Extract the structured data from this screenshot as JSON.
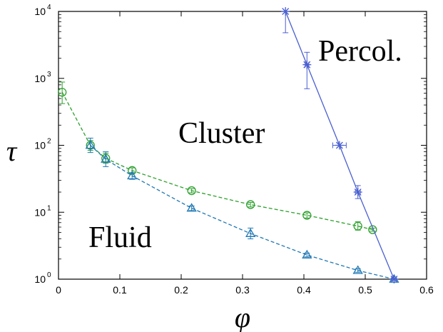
{
  "chart_data": {
    "type": "line",
    "xlabel": "φ",
    "ylabel": "τ",
    "xlim": [
      0,
      0.6
    ],
    "ylim": [
      1,
      10000
    ],
    "yscale": "log",
    "x_ticks": [
      "0",
      "0.1",
      "0.2",
      "0.3",
      "0.4",
      "0.5",
      "0.6"
    ],
    "y_ticks": [
      {
        "base": "10",
        "exp": "0"
      },
      {
        "base": "10",
        "exp": "1"
      },
      {
        "base": "10",
        "exp": "2"
      },
      {
        "base": "10",
        "exp": "3"
      },
      {
        "base": "10",
        "exp": "4"
      }
    ],
    "grid": false,
    "region_labels": [
      "Percol.",
      "Cluster",
      "Fluid"
    ],
    "series": [
      {
        "marker": "circle",
        "color": "#2ca02c",
        "line_style": "dashed",
        "points": [
          {
            "x": 0.006,
            "y": 620,
            "lo": 420,
            "hi": 880
          },
          {
            "x": 0.052,
            "y": 100,
            "lo": 84,
            "hi": 118
          },
          {
            "x": 0.077,
            "y": 64,
            "lo": 54,
            "hi": 76
          },
          {
            "x": 0.12,
            "y": 42,
            "lo": 38,
            "hi": 46
          },
          {
            "x": 0.217,
            "y": 21,
            "lo": 19.5,
            "hi": 22.5
          },
          {
            "x": 0.313,
            "y": 13,
            "lo": 12,
            "hi": 14
          },
          {
            "x": 0.405,
            "y": 9,
            "lo": 8.2,
            "hi": 9.8
          },
          {
            "x": 0.488,
            "y": 6.2,
            "lo": 5.4,
            "hi": 7.2
          },
          {
            "x": 0.512,
            "y": 5.5,
            "lo": 5.2,
            "hi": 5.8
          }
        ]
      },
      {
        "marker": "triangle",
        "color": "#1f77b4",
        "line_style": "dashed",
        "points": [
          {
            "x": 0.052,
            "y": 100,
            "lo": 78,
            "hi": 128
          },
          {
            "x": 0.077,
            "y": 62,
            "lo": 48,
            "hi": 80
          },
          {
            "x": 0.12,
            "y": 35,
            "lo": 31,
            "hi": 39
          },
          {
            "x": 0.217,
            "y": 11.5,
            "lo": 10.6,
            "hi": 12.4
          },
          {
            "x": 0.313,
            "y": 4.8,
            "lo": 4.0,
            "hi": 5.8
          },
          {
            "x": 0.405,
            "y": 2.3,
            "lo": 2.15,
            "hi": 2.45
          },
          {
            "x": 0.488,
            "y": 1.35,
            "lo": 1.27,
            "hi": 1.43
          },
          {
            "x": 0.547,
            "y": 1.0,
            "lo": 0.97,
            "hi": 1.03
          }
        ]
      },
      {
        "marker": "asterisk",
        "color": "#4a5fd0",
        "line_style": "solid",
        "points": [
          {
            "x": 0.37,
            "y": 10000,
            "lo": 4800,
            "hi": 10000,
            "xlo": 0.37,
            "xhi": 0.37
          },
          {
            "x": 0.405,
            "y": 1600,
            "lo": 700,
            "hi": 2450,
            "xlo": 0.402,
            "xhi": 0.408
          },
          {
            "x": 0.458,
            "y": 100,
            "lo": 100,
            "hi": 100,
            "xlo": 0.447,
            "xhi": 0.469
          },
          {
            "x": 0.488,
            "y": 20,
            "lo": 16,
            "hi": 25,
            "xlo": 0.484,
            "xhi": 0.492
          },
          {
            "x": 0.547,
            "y": 1.0,
            "lo": 1.0,
            "hi": 1.0,
            "xlo": 0.543,
            "xhi": 0.551
          }
        ]
      }
    ]
  }
}
